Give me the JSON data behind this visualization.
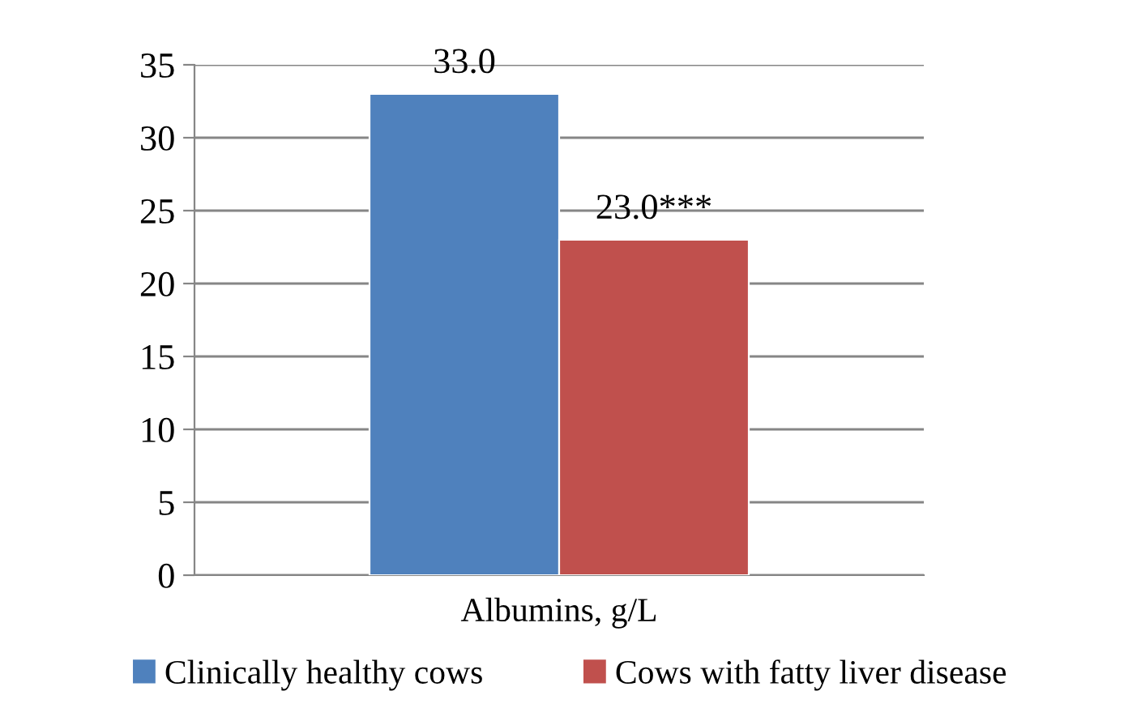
{
  "chart_data": {
    "type": "bar",
    "categories": [
      "Albumins, g/L"
    ],
    "series": [
      {
        "name": "Clinically healthy cows",
        "color": "#4f81bd",
        "values": [
          33.0
        ],
        "value_labels": [
          "33.0"
        ]
      },
      {
        "name": "Cows with fatty liver disease",
        "color": "#c0504d",
        "values": [
          23.0
        ],
        "value_labels": [
          "23.0***"
        ]
      }
    ],
    "ylim": [
      0,
      35
    ],
    "yticks": [
      0,
      5,
      10,
      15,
      20,
      25,
      30,
      35
    ],
    "grid": "y",
    "legend": "bottom"
  }
}
